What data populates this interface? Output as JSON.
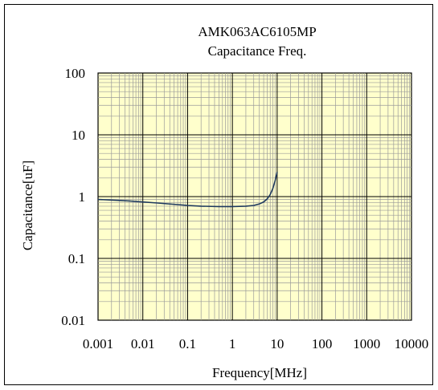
{
  "chart_data": {
    "type": "line",
    "title": "AMK063AC6105MP",
    "subtitle": "Capacitance Freq.",
    "xlabel": "Frequency[MHz]",
    "ylabel": "Capacitance[uF]",
    "x_scale": "log",
    "y_scale": "log",
    "xlim": [
      0.001,
      10000
    ],
    "ylim": [
      0.01,
      100
    ],
    "x_ticks": [
      "0.001",
      "0.01",
      "0.1",
      "1",
      "10",
      "100",
      "1000",
      "10000"
    ],
    "y_ticks": [
      "100",
      "10",
      "1",
      "0.1",
      "0.01"
    ],
    "grid": true,
    "plot_background": "#ffffcc",
    "series": [
      {
        "color": "#1f3a5f",
        "x": [
          0.001,
          0.002,
          0.005,
          0.01,
          0.02,
          0.05,
          0.1,
          0.2,
          0.5,
          1,
          2,
          3,
          4,
          5,
          6,
          7,
          8,
          9,
          10
        ],
        "y": [
          0.9,
          0.88,
          0.85,
          0.82,
          0.79,
          0.75,
          0.72,
          0.7,
          0.69,
          0.69,
          0.7,
          0.72,
          0.76,
          0.82,
          0.92,
          1.08,
          1.35,
          1.8,
          2.5
        ]
      }
    ]
  }
}
